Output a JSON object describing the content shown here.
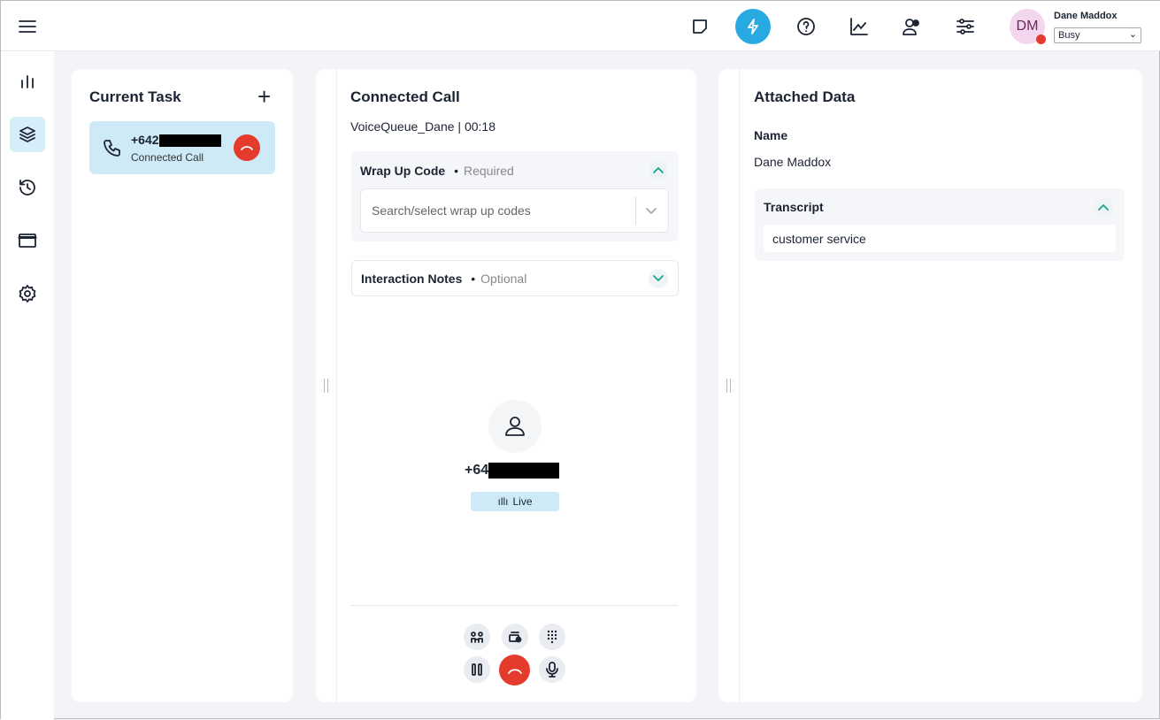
{
  "header": {
    "user_name": "Dane Maddox",
    "avatar_initials": "DM",
    "status": "Busy",
    "status_color": "#e53b2c",
    "accent": "#29a9e1",
    "icons": [
      "sticky-note-icon",
      "lightning-icon",
      "help-icon",
      "chart-line-icon",
      "users-icon",
      "sliders-icon"
    ]
  },
  "sidebar": {
    "icons": [
      "bar-chart-icon",
      "layers-icon",
      "history-icon",
      "window-icon",
      "gear-icon"
    ]
  },
  "current_task": {
    "title": "Current Task",
    "phone": "+642",
    "status": "Connected Call"
  },
  "connected_call": {
    "title": "Connected Call",
    "queue": "VoiceQueue_Dane | 00:18",
    "wrap_up": {
      "label": "Wrap Up Code",
      "required": "Required",
      "placeholder": "Search/select wrap up codes"
    },
    "notes": {
      "label": "Interaction Notes",
      "optional": "Optional"
    },
    "caller_phone": "+64",
    "live": "Live"
  },
  "attached_data": {
    "title": "Attached Data",
    "name_label": "Name",
    "name_value": "Dane Maddox",
    "transcript_label": "Transcript",
    "transcript_value": "customer service"
  }
}
